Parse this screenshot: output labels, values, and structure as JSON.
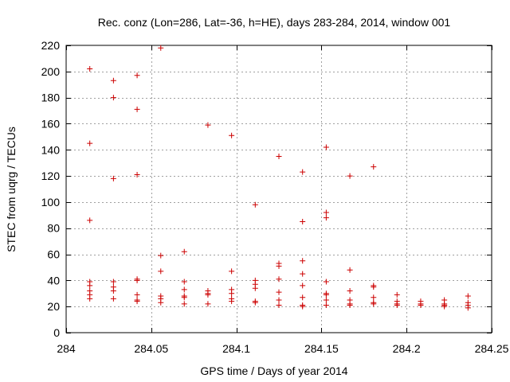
{
  "chart_data": {
    "type": "scatter",
    "title": "Rec. conz (Lon=286, Lat=-36, h=HE), days 283-284, 2014, window 001",
    "xlabel": "GPS time / Days of year 2014",
    "ylabel": "STEC from uqrg / TECUs",
    "xlim": [
      284,
      284.25
    ],
    "ylim": [
      0,
      220
    ],
    "xticks": [
      284,
      284.05,
      284.1,
      284.15,
      284.2,
      284.25
    ],
    "xtick_labels": [
      "284",
      "284.05",
      "284.1",
      "284.15",
      "284.2",
      "284.25"
    ],
    "yticks": [
      0,
      20,
      40,
      60,
      80,
      100,
      120,
      140,
      160,
      180,
      200,
      220
    ],
    "ytick_labels": [
      "0",
      "20",
      "40",
      "60",
      "80",
      "100",
      "120",
      "140",
      "160",
      "180",
      "200",
      "220"
    ],
    "grid": true,
    "marker": "plus",
    "marker_color": "#cc0000",
    "series": [
      {
        "name": "STEC",
        "points": [
          [
            284.0139,
            202
          ],
          [
            284.0139,
            145
          ],
          [
            284.0139,
            86
          ],
          [
            284.0139,
            39
          ],
          [
            284.0139,
            36
          ],
          [
            284.0139,
            32
          ],
          [
            284.0139,
            29
          ],
          [
            284.0139,
            26
          ],
          [
            284.0278,
            193
          ],
          [
            284.0278,
            180
          ],
          [
            284.0278,
            118
          ],
          [
            284.0278,
            39
          ],
          [
            284.0278,
            35
          ],
          [
            284.0278,
            32
          ],
          [
            284.0278,
            26
          ],
          [
            284.0417,
            197
          ],
          [
            284.0417,
            171
          ],
          [
            284.0417,
            121
          ],
          [
            284.0417,
            41
          ],
          [
            284.0417,
            40
          ],
          [
            284.0417,
            29
          ],
          [
            284.0417,
            25
          ],
          [
            284.0417,
            24
          ],
          [
            284.0556,
            218
          ],
          [
            284.0556,
            59
          ],
          [
            284.0556,
            47
          ],
          [
            284.0556,
            28
          ],
          [
            284.0556,
            26
          ],
          [
            284.0556,
            23
          ],
          [
            284.0694,
            62
          ],
          [
            284.0694,
            39
          ],
          [
            284.0694,
            33
          ],
          [
            284.0694,
            28
          ],
          [
            284.0694,
            27
          ],
          [
            284.0694,
            22
          ],
          [
            284.0833,
            159
          ],
          [
            284.0833,
            32
          ],
          [
            284.0833,
            30
          ],
          [
            284.0833,
            29
          ],
          [
            284.0833,
            22
          ],
          [
            284.0972,
            151
          ],
          [
            284.0972,
            47
          ],
          [
            284.0972,
            33
          ],
          [
            284.0972,
            30
          ],
          [
            284.0972,
            26
          ],
          [
            284.0972,
            24
          ],
          [
            284.1111,
            98
          ],
          [
            284.1111,
            40
          ],
          [
            284.1111,
            37
          ],
          [
            284.1111,
            34
          ],
          [
            284.1111,
            24
          ],
          [
            284.1111,
            23
          ],
          [
            284.125,
            135
          ],
          [
            284.125,
            53
          ],
          [
            284.125,
            51
          ],
          [
            284.125,
            41
          ],
          [
            284.125,
            31
          ],
          [
            284.125,
            25
          ],
          [
            284.125,
            21
          ],
          [
            284.1389,
            123
          ],
          [
            284.1389,
            85
          ],
          [
            284.1389,
            55
          ],
          [
            284.1389,
            45
          ],
          [
            284.1389,
            36
          ],
          [
            284.1389,
            27
          ],
          [
            284.1389,
            21
          ],
          [
            284.1389,
            20
          ],
          [
            284.1528,
            142
          ],
          [
            284.1528,
            92
          ],
          [
            284.1528,
            88
          ],
          [
            284.1528,
            39
          ],
          [
            284.1528,
            30
          ],
          [
            284.1528,
            29
          ],
          [
            284.1528,
            25
          ],
          [
            284.1528,
            21
          ],
          [
            284.1667,
            120
          ],
          [
            284.1667,
            48
          ],
          [
            284.1667,
            32
          ],
          [
            284.1667,
            25
          ],
          [
            284.1667,
            22
          ],
          [
            284.1667,
            21
          ],
          [
            284.1806,
            127
          ],
          [
            284.1806,
            36
          ],
          [
            284.1806,
            35
          ],
          [
            284.1806,
            27
          ],
          [
            284.1806,
            23
          ],
          [
            284.1806,
            22
          ],
          [
            284.1944,
            29
          ],
          [
            284.1944,
            24
          ],
          [
            284.1944,
            22
          ],
          [
            284.1944,
            21
          ],
          [
            284.2083,
            24
          ],
          [
            284.2083,
            22
          ],
          [
            284.2083,
            21
          ],
          [
            284.2222,
            25
          ],
          [
            284.2222,
            22
          ],
          [
            284.2222,
            21
          ],
          [
            284.2222,
            20
          ],
          [
            284.2361,
            28
          ],
          [
            284.2361,
            23
          ],
          [
            284.2361,
            21
          ],
          [
            284.2361,
            19
          ]
        ]
      }
    ]
  }
}
